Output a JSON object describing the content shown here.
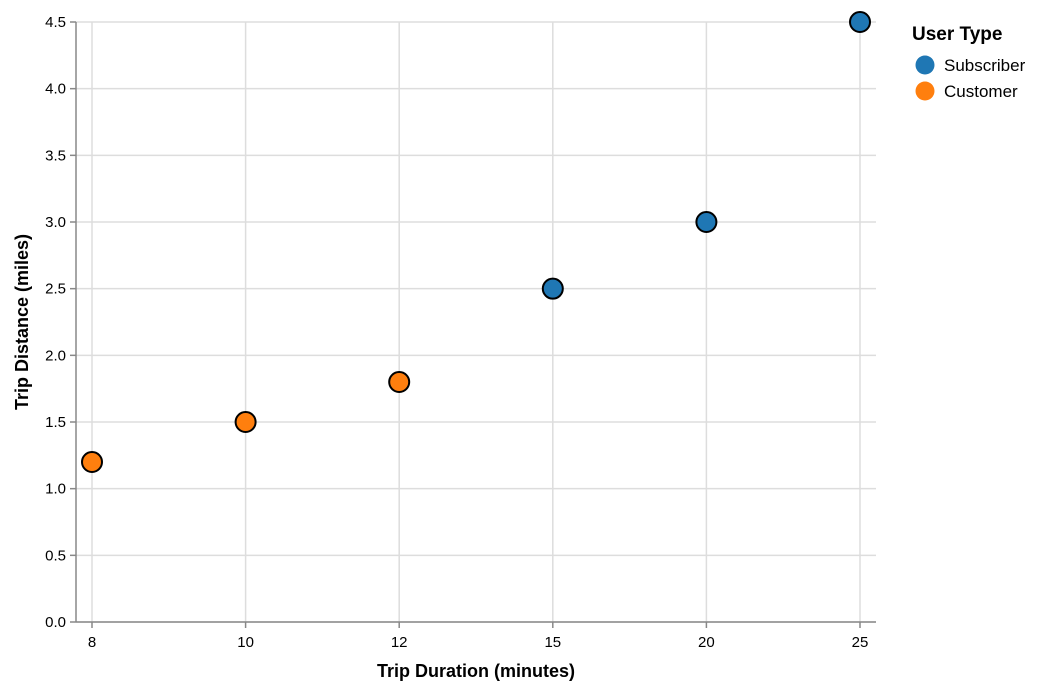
{
  "chart_data": {
    "type": "scatter",
    "xlabel": "Trip Duration (minutes)",
    "ylabel": "Trip Distance (miles)",
    "x_scale": "point",
    "x_categories": [
      8,
      10,
      12,
      15,
      20,
      25
    ],
    "ylim": [
      0,
      4.5
    ],
    "y_ticks": [
      "0.0",
      "0.5",
      "1.0",
      "1.5",
      "2.0",
      "2.5",
      "3.0",
      "3.5",
      "4.0",
      "4.5"
    ],
    "grid": true,
    "legend": {
      "title": "User Type",
      "position": "right",
      "entries": [
        {
          "name": "Subscriber",
          "color": "#1f77b4"
        },
        {
          "name": "Customer",
          "color": "#ff7f0e"
        }
      ]
    },
    "series": [
      {
        "name": "Subscriber",
        "color": "#1f77b4",
        "points": [
          {
            "x": 15,
            "y": 2.5
          },
          {
            "x": 20,
            "y": 3.0
          },
          {
            "x": 25,
            "y": 4.5
          }
        ]
      },
      {
        "name": "Customer",
        "color": "#ff7f0e",
        "points": [
          {
            "x": 8,
            "y": 1.2
          },
          {
            "x": 10,
            "y": 1.5
          },
          {
            "x": 12,
            "y": 1.8
          }
        ]
      }
    ]
  }
}
